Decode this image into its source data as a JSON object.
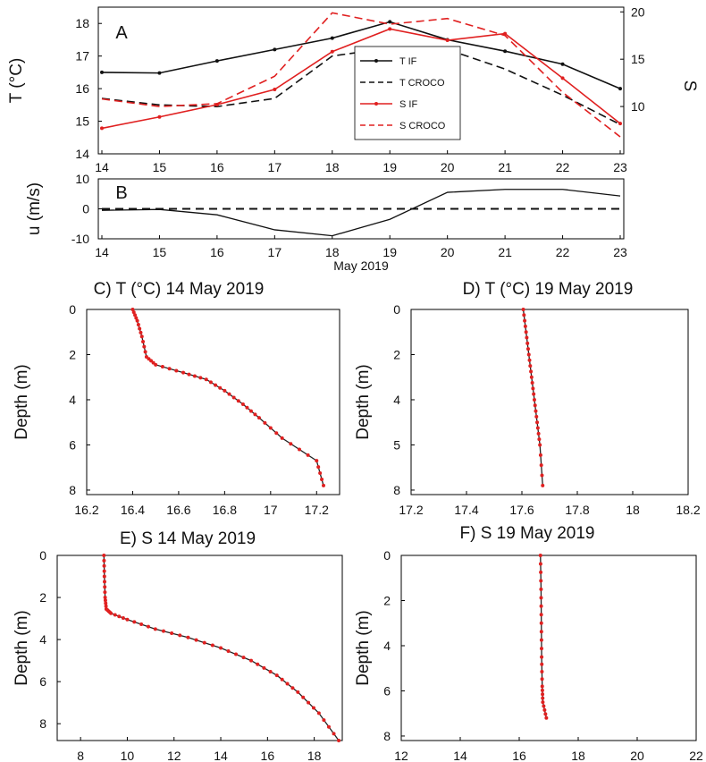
{
  "chart_data": [
    {
      "id": "A",
      "type": "line",
      "panel_label": "A",
      "ylabel": "T (°C)",
      "ylabel_right": "S",
      "xlim": [
        14,
        23
      ],
      "ylim": [
        14,
        18.5
      ],
      "ylim_right": [
        5,
        20.5
      ],
      "xticks": [
        "14",
        "15",
        "16",
        "17",
        "18",
        "19",
        "20",
        "21",
        "22",
        "23"
      ],
      "yticks": [
        "14",
        "15",
        "16",
        "17",
        "18"
      ],
      "yticks_right": [
        "10",
        "15",
        "20"
      ],
      "legend_position": "center",
      "series": [
        {
          "name": "T IF",
          "axis": "left",
          "color": "#111111",
          "dash": "solid",
          "marker": true,
          "x": [
            14,
            15,
            16,
            17,
            18,
            19,
            20,
            21,
            22,
            23
          ],
          "y": [
            16.5,
            16.48,
            16.85,
            17.2,
            17.55,
            18.05,
            17.5,
            17.15,
            16.75,
            16.0
          ]
        },
        {
          "name": "T CROCO",
          "axis": "left",
          "color": "#111111",
          "dash": "dashed",
          "marker": false,
          "x": [
            14,
            15,
            16,
            17,
            18,
            19,
            20,
            21,
            22,
            23
          ],
          "y": [
            15.7,
            15.5,
            15.45,
            15.7,
            17.0,
            17.25,
            17.2,
            16.6,
            15.8,
            14.9
          ]
        },
        {
          "name": "S IF",
          "axis": "right",
          "color": "#e02020",
          "dash": "solid",
          "marker": true,
          "x": [
            14,
            15,
            16,
            17,
            18,
            19,
            20,
            21,
            22,
            23
          ],
          "y": [
            7.7,
            8.9,
            10.2,
            11.8,
            15.8,
            18.2,
            17.0,
            17.7,
            13.0,
            8.2
          ]
        },
        {
          "name": "S CROCO",
          "axis": "right",
          "color": "#e02020",
          "dash": "dashed",
          "marker": false,
          "x": [
            14,
            15,
            16,
            17,
            18,
            19,
            20,
            21,
            22,
            23
          ],
          "y": [
            10.8,
            10.0,
            10.3,
            13.2,
            19.9,
            18.7,
            19.3,
            17.5,
            11.5,
            6.8
          ]
        }
      ]
    },
    {
      "id": "B",
      "type": "line",
      "panel_label": "B",
      "ylabel": "u (m/s)",
      "xlabel": "May 2019",
      "xlim": [
        14,
        23
      ],
      "ylim": [
        -10,
        10
      ],
      "xticks": [
        "14",
        "15",
        "16",
        "17",
        "18",
        "19",
        "20",
        "21",
        "22",
        "23"
      ],
      "yticks": [
        "-10",
        "0",
        "10"
      ],
      "series": [
        {
          "color": "#111111",
          "dash": "solid",
          "x": [
            14,
            15,
            16,
            17,
            18,
            19,
            20,
            21,
            22,
            23
          ],
          "y": [
            -0.5,
            -0.2,
            -2.0,
            -7.0,
            -9.0,
            -3.5,
            5.5,
            6.5,
            6.5,
            4.3
          ]
        },
        {
          "color": "#111111",
          "dash": "dashed",
          "x": [
            14,
            23
          ],
          "y": [
            0,
            0
          ]
        }
      ]
    },
    {
      "id": "C",
      "type": "line",
      "title": "C) T (°C) 14 May 2019",
      "ylabel": "Depth (m)",
      "xlim": [
        16.2,
        17.3
      ],
      "ylim": [
        0,
        8.2
      ],
      "y_inverted": true,
      "xticks": [
        "16.2",
        "16.4",
        "16.6",
        "16.8",
        "17",
        "17.2"
      ],
      "yticks": [
        "0",
        "2",
        "4",
        "6",
        "8"
      ],
      "series": [
        {
          "color": "#222222",
          "marker_color": "#e02020",
          "x": [
            16.4,
            16.42,
            16.44,
            16.46,
            16.5,
            16.62,
            16.72,
            16.8,
            16.88,
            16.95,
            17.05,
            17.2,
            17.23
          ],
          "y": [
            0,
            0.5,
            1.2,
            2.1,
            2.45,
            2.8,
            3.1,
            3.6,
            4.2,
            4.8,
            5.7,
            6.7,
            7.8
          ]
        }
      ]
    },
    {
      "id": "D",
      "type": "line",
      "title": "D) T (°C) 19 May 2019",
      "ylabel": "Depth (m)",
      "xlim": [
        17.2,
        18.2
      ],
      "ylim": [
        0,
        8.2
      ],
      "y_inverted": true,
      "xticks": [
        "17.2",
        "17.4",
        "17.6",
        "17.8",
        "18",
        "18.2"
      ],
      "yticks": [
        "0",
        "2",
        "4",
        "5",
        "8"
      ],
      "series": [
        {
          "color": "#222222",
          "marker_color": "#e02020",
          "x": [
            17.605,
            17.615,
            17.625,
            17.635,
            17.645,
            17.655,
            17.665,
            17.675
          ],
          "y": [
            0,
            1.0,
            2.0,
            3.0,
            4.0,
            5.0,
            6.0,
            7.8
          ]
        }
      ]
    },
    {
      "id": "E",
      "type": "line",
      "title": "E) S 14 May 2019",
      "ylabel": "Depth (m)",
      "xlim": [
        7,
        19.2
      ],
      "ylim": [
        0,
        8.8
      ],
      "y_inverted": true,
      "xticks": [
        "8",
        "10",
        "12",
        "14",
        "16",
        "18"
      ],
      "yticks": [
        "0",
        "2",
        "4",
        "6",
        "8"
      ],
      "series": [
        {
          "color": "#222222",
          "marker_color": "#e02020",
          "x": [
            9.0,
            9.02,
            9.05,
            9.1,
            9.3,
            10.0,
            11.2,
            12.6,
            14.0,
            15.3,
            16.4,
            17.3,
            18.2,
            19.05
          ],
          "y": [
            0,
            1.0,
            2.0,
            2.55,
            2.75,
            3.05,
            3.5,
            3.9,
            4.4,
            5.0,
            5.7,
            6.5,
            7.5,
            8.8
          ]
        }
      ]
    },
    {
      "id": "F",
      "type": "line",
      "title": "F) S 19 May 2019",
      "ylabel": "Depth (m)",
      "xlim": [
        12,
        22
      ],
      "ylim": [
        0,
        8.2
      ],
      "y_inverted": true,
      "xticks": [
        "12",
        "14",
        "16",
        "18",
        "20",
        "22"
      ],
      "yticks": [
        "0",
        "2",
        "4",
        "6",
        "8"
      ],
      "series": [
        {
          "color": "#222222",
          "marker_color": "#e02020",
          "x": [
            16.72,
            16.74,
            16.75,
            16.76,
            16.78,
            16.8,
            16.92
          ],
          "y": [
            0,
            1.5,
            3.0,
            4.5,
            5.8,
            6.5,
            7.2
          ]
        }
      ]
    }
  ],
  "figure": {
    "legend_labels": [
      "T IF",
      "T CROCO",
      "S IF",
      "S CROCO"
    ]
  }
}
